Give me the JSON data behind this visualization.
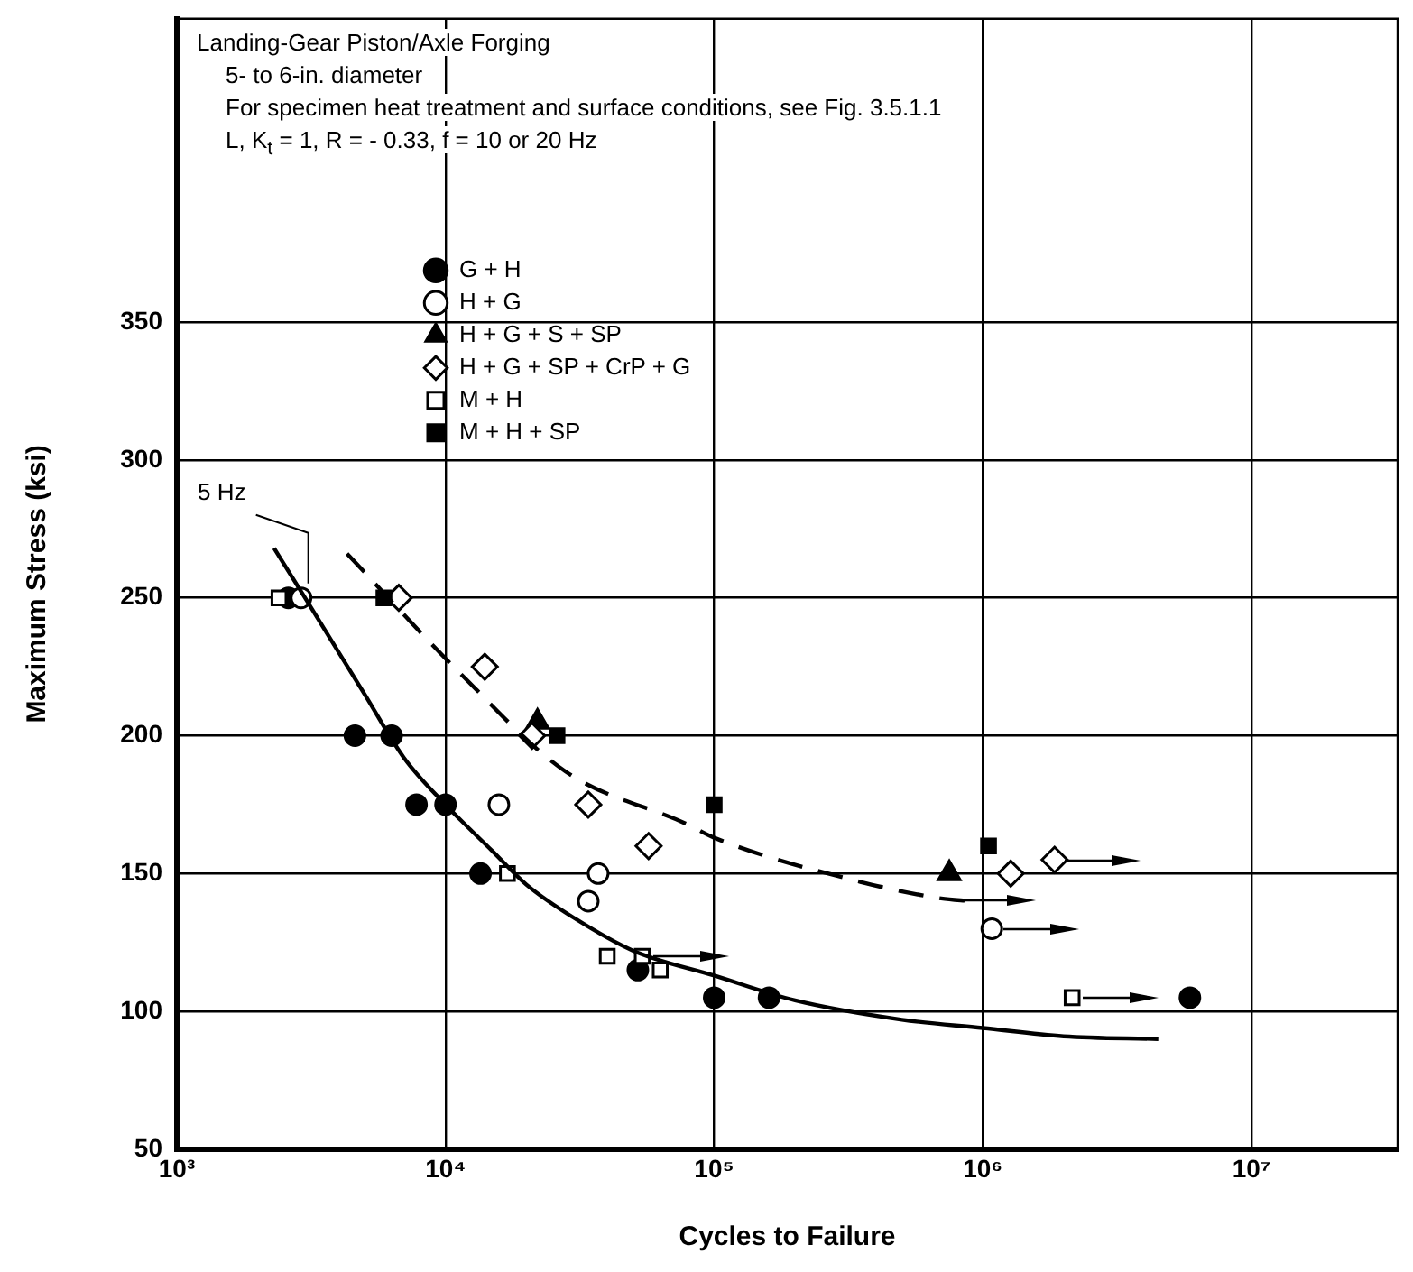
{
  "chart_data": {
    "type": "scatter",
    "title": "Landing-Gear Piston/Axle Forging",
    "subtitle": "5- to 6-in. diameter",
    "xlabel": "Cycles to Failure",
    "ylabel": "Maximum Stress (ksi)",
    "annotations": [
      "For specimen heat treatment and surface conditions, see Fig. 3.5.1.1",
      "L, K$_{t}$ = 1, R = - 0.33, f = 10 or 20 Hz",
      {
        "text": "5 Hz",
        "x": 2900,
        "y": 250
      }
    ],
    "log": "x",
    "xlim": [
      1000,
      35000000
    ],
    "xticks": [
      {
        "value": 1000,
        "label": "10³"
      },
      {
        "value": 10000,
        "label": "10⁴"
      },
      {
        "value": 100000,
        "label": "10⁵"
      },
      {
        "value": 1000000,
        "label": "10⁶"
      },
      {
        "value": 10000000,
        "label": "10⁷"
      }
    ],
    "ylim": [
      50,
      460
    ],
    "yticks": [
      50,
      100,
      150,
      200,
      250,
      300,
      350
    ],
    "grid": true,
    "legend": "top",
    "series": [
      {
        "name": "G + H",
        "color": "#000000",
        "marker": "circle",
        "x": [
          2600,
          4600,
          6300,
          7800,
          10000,
          13500,
          52000,
          100000,
          160000,
          5900000
        ],
        "values": [
          250,
          200,
          200,
          175,
          175,
          150,
          115,
          105,
          105,
          105
        ]
      },
      {
        "name": "H + G",
        "color": "#ffffff",
        "marker": "circle",
        "x": [
          2900,
          15800,
          37000,
          34000,
          1080000
        ],
        "values": [
          250,
          175,
          150,
          140,
          130
        ]
      },
      {
        "name": "H + G + S + SP",
        "color": "#000000",
        "marker": "triangle",
        "x": [
          22000,
          750000
        ],
        "values": [
          205,
          150
        ]
      },
      {
        "name": "H + G + SP + CrP + G",
        "color": "#ffffff",
        "marker": "diamond",
        "x": [
          6700,
          14000,
          21000,
          34000,
          57000,
          1270000,
          1850000
        ],
        "values": [
          250,
          225,
          200,
          175,
          160,
          150,
          155
        ]
      },
      {
        "name": "M + H",
        "color": "#ffffff",
        "marker": "square",
        "x": [
          2400,
          17000,
          40000,
          54000,
          63000,
          2150000
        ],
        "values": [
          250,
          150,
          120,
          120,
          115,
          105
        ]
      },
      {
        "name": "M + H + SP",
        "color": "#000000",
        "marker": "square",
        "x": [
          5900,
          26000,
          100000,
          1050000
        ],
        "values": [
          250,
          200,
          175,
          160
        ]
      },
      {
        "type": "line",
        "color": "#000000",
        "marker": "none",
        "line_style": "solid",
        "x": [
          2300,
          3000,
          5000,
          7000,
          10000,
          15000,
          20000,
          30000,
          50000,
          100000,
          200000,
          500000,
          1000000,
          2000000,
          4500000
        ],
        "values": [
          268,
          250,
          215,
          192,
          175,
          158,
          146,
          134,
          122,
          113,
          104,
          97,
          94,
          91,
          90
        ]
      },
      {
        "type": "line",
        "color": "#000000",
        "marker": "none",
        "line_style": "dashed",
        "x": [
          4300,
          11500,
          28000,
          79000,
          100000,
          350000,
          700000,
          900000
        ],
        "values": [
          266,
          222,
          187,
          168,
          163,
          147,
          141,
          140
        ]
      }
    ]
  }
}
